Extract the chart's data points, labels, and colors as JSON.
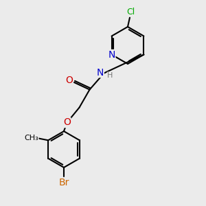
{
  "background_color": "#ebebeb",
  "bond_color": "#000000",
  "bond_width": 1.5,
  "atom_colors": {
    "C": "#000000",
    "N": "#0000cc",
    "O": "#cc0000",
    "Cl": "#00aa00",
    "Br": "#cc6600",
    "H": "#777777"
  },
  "font_size": 9,
  "xlim": [
    0,
    10
  ],
  "ylim": [
    0,
    10
  ]
}
